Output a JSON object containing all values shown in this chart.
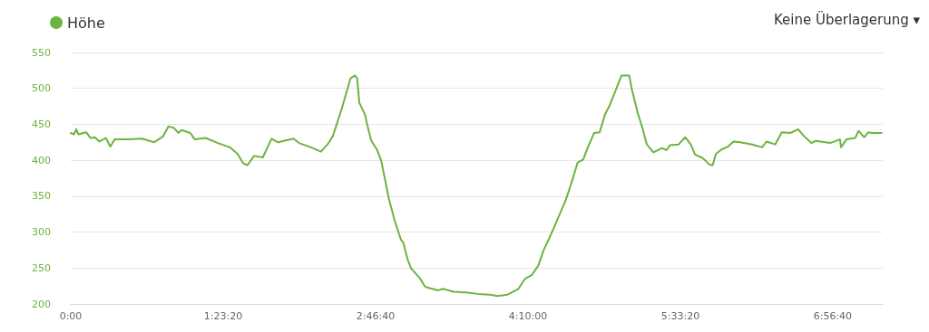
{
  "chart_data": {
    "type": "line",
    "legend": "top left",
    "grid": "y",
    "marker": "none",
    "line_style": "solid",
    "annotations": [
      "Keine Überlagerung ▾"
    ],
    "xlim": [
      0,
      7.4
    ],
    "xticks": [
      {
        "value": 0,
        "label": "0:00"
      },
      {
        "value": 1.3889,
        "label": "1:23:20"
      },
      {
        "value": 2.7778,
        "label": "2:46:40"
      },
      {
        "value": 4.1667,
        "label": "4:10:00"
      },
      {
        "value": 5.5556,
        "label": "5:33:20"
      },
      {
        "value": 6.9444,
        "label": "6:56:40"
      }
    ],
    "ylim": [
      200,
      550
    ],
    "yticks": [
      200,
      250,
      300,
      350,
      400,
      450,
      500,
      550
    ],
    "x": [
      0,
      0.03,
      0.05,
      0.07,
      0.14,
      0.18,
      0.22,
      0.26,
      0.32,
      0.36,
      0.4,
      0.51,
      0.65,
      0.76,
      0.8,
      0.84,
      0.89,
      0.94,
      0.98,
      1.01,
      1.09,
      1.13,
      1.23,
      1.34,
      1.45,
      1.52,
      1.57,
      1.61,
      1.67,
      1.75,
      1.83,
      1.89,
      1.94,
      2.03,
      2.08,
      2.19,
      2.28,
      2.34,
      2.39,
      2.47,
      2.55,
      2.59,
      2.61,
      2.63,
      2.68,
      2.72,
      2.74,
      2.79,
      2.83,
      2.9,
      2.95,
      3.01,
      3.03,
      3.07,
      3.1,
      3.18,
      3.23,
      3.27,
      3.35,
      3.39,
      3.49,
      3.6,
      3.71,
      3.82,
      3.89,
      3.98,
      4.08,
      4.14,
      4.2,
      4.26,
      4.31,
      4.36,
      4.4,
      4.45,
      4.51,
      4.56,
      4.62,
      4.67,
      4.71,
      4.77,
      4.82,
      4.87,
      4.91,
      4.96,
      5.02,
      5.09,
      5.11,
      5.17,
      5.21,
      5.25,
      5.31,
      5.39,
      5.43,
      5.46,
      5.54,
      5.6,
      5.65,
      5.69,
      5.76,
      5.82,
      5.85,
      5.88,
      5.93,
      5.99,
      6.04,
      6.1,
      6.21,
      6.3,
      6.34,
      6.42,
      6.48,
      6.56,
      6.63,
      6.68,
      6.75,
      6.79,
      6.92,
      7.01,
      7.02,
      7.07,
      7.15,
      7.18,
      7.23,
      7.27,
      7.3,
      7.39
    ],
    "series": [
      {
        "name": "Höhe",
        "color": "#6db33f",
        "values": [
          438,
          436,
          443,
          436,
          439,
          431,
          432,
          426,
          431,
          419,
          429,
          429,
          430,
          425,
          429,
          433,
          447,
          445,
          438,
          442,
          438,
          429,
          431,
          424,
          418,
          409,
          396,
          393,
          406,
          404,
          430,
          425,
          427,
          430,
          424,
          418,
          412,
          422,
          434,
          472,
          514,
          518,
          514,
          480,
          464,
          438,
          427,
          415,
          399,
          346,
          317,
          289,
          286,
          262,
          250,
          236,
          224,
          222,
          219,
          221,
          217,
          216,
          214,
          213,
          211,
          213,
          221,
          235,
          240,
          253,
          275,
          291,
          305,
          323,
          344,
          367,
          397,
          401,
          417,
          438,
          439,
          464,
          476,
          495,
          518,
          518,
          501,
          464,
          445,
          422,
          411,
          417,
          414,
          421,
          422,
          432,
          422,
          408,
          403,
          394,
          393,
          409,
          415,
          419,
          426,
          425,
          422,
          418,
          426,
          422,
          439,
          438,
          443,
          434,
          424,
          427,
          424,
          429,
          418,
          429,
          431,
          441,
          432,
          439,
          438,
          438
        ]
      }
    ]
  }
}
